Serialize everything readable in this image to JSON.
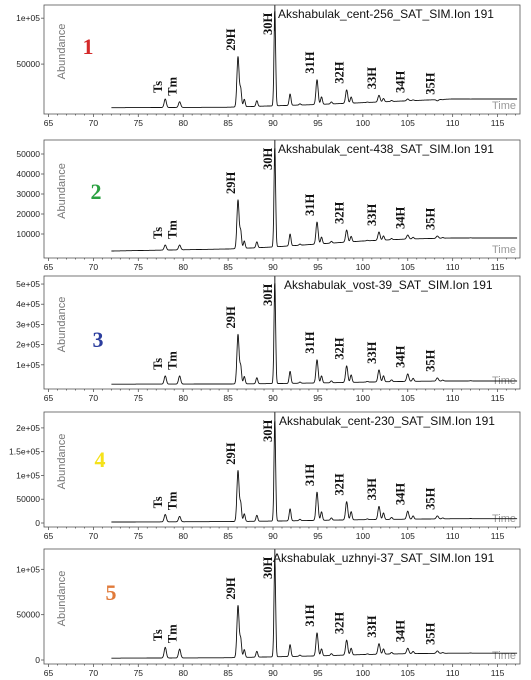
{
  "chart_data": [
    {
      "type": "line",
      "panel_number": "1",
      "number_color": "#d42a2a",
      "ion_label": "Akshabulak_cent-256_SAT_SIM.Ion 191",
      "ylabel": "Abundance",
      "xlabel": "Time",
      "xlim": [
        64.5,
        117.5
      ],
      "ylim": [
        0,
        110000
      ],
      "x_ticks": [
        65,
        70,
        75,
        80,
        85,
        90,
        95,
        100,
        105,
        110,
        115
      ],
      "y_ticks": [
        {
          "value": 50000,
          "label": "50000"
        },
        {
          "value": 100000,
          "label": "1e+05"
        }
      ],
      "baseline": [
        [
          72,
          2500
        ],
        [
          85,
          3000
        ],
        [
          90,
          4500
        ],
        [
          95,
          6000
        ],
        [
          100,
          8000
        ],
        [
          105,
          10000
        ],
        [
          110,
          12000
        ],
        [
          117,
          12000
        ]
      ],
      "peaks": [
        {
          "label": "Ts",
          "x": 78.0,
          "y": 12000
        },
        {
          "label": "Tm",
          "x": 79.6,
          "y": 9000
        },
        {
          "label": "29H",
          "x": 86.1,
          "y": 58000
        },
        {
          "label": "30H",
          "x": 90.2,
          "y": 108000
        },
        {
          "label": "31H",
          "x": 94.9,
          "y": 33000
        },
        {
          "label": "32H",
          "x": 98.2,
          "y": 22000
        },
        {
          "label": "33H",
          "x": 101.8,
          "y": 16000
        },
        {
          "label": "34H",
          "x": 105.0,
          "y": 12000
        },
        {
          "label": "35H",
          "x": 108.3,
          "y": 10000
        }
      ]
    },
    {
      "type": "line",
      "panel_number": "2",
      "number_color": "#2aa040",
      "ion_label": "Akshabulak_cent-438_SAT_SIM.Ion 191",
      "ylabel": "Abundance",
      "xlabel": "Time",
      "xlim": [
        64.5,
        117.5
      ],
      "ylim": [
        0,
        55000
      ],
      "x_ticks": [
        65,
        70,
        75,
        80,
        85,
        90,
        95,
        100,
        105,
        110,
        115
      ],
      "y_ticks": [
        {
          "value": 10000,
          "label": "10000"
        },
        {
          "value": 20000,
          "label": "20000"
        },
        {
          "value": 30000,
          "label": "30000"
        },
        {
          "value": 40000,
          "label": "40000"
        },
        {
          "value": 50000,
          "label": "50000"
        }
      ],
      "baseline": [
        [
          72,
          1500
        ],
        [
          85,
          2500
        ],
        [
          90,
          3500
        ],
        [
          95,
          5000
        ],
        [
          100,
          6500
        ],
        [
          105,
          7500
        ],
        [
          110,
          8000
        ],
        [
          117,
          8000
        ]
      ],
      "peaks": [
        {
          "label": "Ts",
          "x": 78.0,
          "y": 4500
        },
        {
          "label": "Tm",
          "x": 79.6,
          "y": 4500
        },
        {
          "label": "29H",
          "x": 86.1,
          "y": 27000
        },
        {
          "label": "30H",
          "x": 90.2,
          "y": 53000
        },
        {
          "label": "31H",
          "x": 94.9,
          "y": 16000
        },
        {
          "label": "32H",
          "x": 98.2,
          "y": 12000
        },
        {
          "label": "33H",
          "x": 101.8,
          "y": 11000
        },
        {
          "label": "34H",
          "x": 105.0,
          "y": 9500
        },
        {
          "label": "35H",
          "x": 108.3,
          "y": 9000
        }
      ]
    },
    {
      "type": "line",
      "panel_number": "3",
      "number_color": "#2c3e9e",
      "ion_label": "Akshabulak_vost-39_SAT_SIM.Ion 191",
      "ylabel": "Abundance",
      "xlabel": "Time",
      "xlim": [
        64.5,
        117.5
      ],
      "ylim": [
        0,
        520000
      ],
      "x_ticks": [
        65,
        70,
        75,
        80,
        85,
        90,
        95,
        100,
        105,
        110,
        115
      ],
      "y_ticks": [
        {
          "value": 100000,
          "label": "1e+05"
        },
        {
          "value": 200000,
          "label": "2e+05"
        },
        {
          "value": 300000,
          "label": "3e+05"
        },
        {
          "value": 400000,
          "label": "4e+05"
        },
        {
          "value": 500000,
          "label": "5e+05"
        }
      ],
      "baseline": [
        [
          72,
          4000
        ],
        [
          85,
          5000
        ],
        [
          90,
          7000
        ],
        [
          95,
          10000
        ],
        [
          100,
          14000
        ],
        [
          105,
          18000
        ],
        [
          110,
          20000
        ],
        [
          117,
          20000
        ]
      ],
      "peaks": [
        {
          "label": "Ts",
          "x": 78.0,
          "y": 45000
        },
        {
          "label": "Tm",
          "x": 79.6,
          "y": 45000
        },
        {
          "label": "29H",
          "x": 86.1,
          "y": 250000
        },
        {
          "label": "30H",
          "x": 90.2,
          "y": 505000
        },
        {
          "label": "31H",
          "x": 94.9,
          "y": 125000
        },
        {
          "label": "32H",
          "x": 98.2,
          "y": 95000
        },
        {
          "label": "33H",
          "x": 101.8,
          "y": 75000
        },
        {
          "label": "34H",
          "x": 105.0,
          "y": 55000
        },
        {
          "label": "35H",
          "x": 108.3,
          "y": 35000
        }
      ]
    },
    {
      "type": "line",
      "panel_number": "4",
      "number_color": "#f5e21a",
      "ion_label": "Akshabulak_cent-230_SAT_SIM.Ion 191",
      "ylabel": "Abundance",
      "xlabel": "Time",
      "xlim": [
        64.5,
        117.5
      ],
      "ylim": [
        0,
        225000
      ],
      "x_ticks": [
        65,
        70,
        75,
        80,
        85,
        90,
        95,
        100,
        105,
        110,
        115
      ],
      "y_ticks": [
        {
          "value": 0,
          "label": "0"
        },
        {
          "value": 50000,
          "label": "50000"
        },
        {
          "value": 100000,
          "label": "1e+05"
        },
        {
          "value": 150000,
          "label": "1.5e+05"
        },
        {
          "value": 200000,
          "label": "2e+05"
        }
      ],
      "baseline": [
        [
          72,
          2000
        ],
        [
          85,
          3000
        ],
        [
          90,
          4000
        ],
        [
          95,
          5500
        ],
        [
          100,
          7000
        ],
        [
          105,
          8000
        ],
        [
          110,
          9000
        ],
        [
          117,
          9000
        ]
      ],
      "peaks": [
        {
          "label": "Ts",
          "x": 78.0,
          "y": 18000
        },
        {
          "label": "Tm",
          "x": 79.6,
          "y": 14000
        },
        {
          "label": "29H",
          "x": 86.1,
          "y": 110000
        },
        {
          "label": "30H",
          "x": 90.2,
          "y": 215000
        },
        {
          "label": "31H",
          "x": 94.9,
          "y": 65000
        },
        {
          "label": "32H",
          "x": 98.2,
          "y": 45000
        },
        {
          "label": "33H",
          "x": 101.8,
          "y": 35000
        },
        {
          "label": "34H",
          "x": 105.0,
          "y": 25000
        },
        {
          "label": "35H",
          "x": 108.3,
          "y": 15000
        }
      ]
    },
    {
      "type": "line",
      "panel_number": "5",
      "number_color": "#e07a3a",
      "ion_label": "Akshabulak_uzhnyi-37_SAT_SIM.Ion 191",
      "ylabel": "Abundance",
      "xlabel": "Time",
      "xlim": [
        64.5,
        117.5
      ],
      "ylim": [
        0,
        118000
      ],
      "x_ticks": [
        65,
        70,
        75,
        80,
        85,
        90,
        95,
        100,
        105,
        110,
        115
      ],
      "y_ticks": [
        {
          "value": 0,
          "label": "0"
        },
        {
          "value": 50000,
          "label": "50000"
        },
        {
          "value": 100000,
          "label": "1e+05"
        }
      ],
      "baseline": [
        [
          72,
          2000
        ],
        [
          85,
          2500
        ],
        [
          90,
          3500
        ],
        [
          95,
          4500
        ],
        [
          100,
          6000
        ],
        [
          105,
          7000
        ],
        [
          110,
          7500
        ],
        [
          117,
          7500
        ]
      ],
      "peaks": [
        {
          "label": "Ts",
          "x": 78.0,
          "y": 14000
        },
        {
          "label": "Tm",
          "x": 79.6,
          "y": 12000
        },
        {
          "label": "29H",
          "x": 86.1,
          "y": 60000
        },
        {
          "label": "30H",
          "x": 90.2,
          "y": 112000
        },
        {
          "label": "31H",
          "x": 94.9,
          "y": 30000
        },
        {
          "label": "32H",
          "x": 98.2,
          "y": 22000
        },
        {
          "label": "33H",
          "x": 101.8,
          "y": 18000
        },
        {
          "label": "34H",
          "x": 105.0,
          "y": 13000
        },
        {
          "label": "35H",
          "x": 108.3,
          "y": 10000
        }
      ]
    }
  ]
}
